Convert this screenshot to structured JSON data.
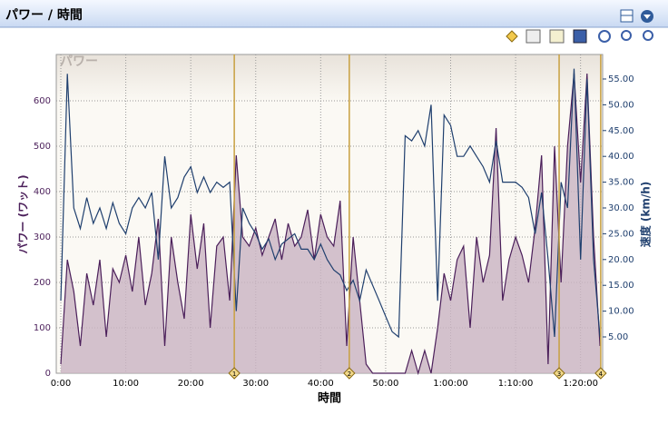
{
  "panel_title": "パワー / 時間",
  "chart_data": {
    "type": "line",
    "watermark": "パワー",
    "xlabel": "時間",
    "ylabel": "パワー (ワット)",
    "y2label": "速度 (km/h)",
    "x": [
      0,
      1,
      2,
      3,
      4,
      5,
      6,
      7,
      8,
      9,
      10,
      11,
      12,
      13,
      14,
      15,
      16,
      17,
      18,
      19,
      20,
      21,
      22,
      23,
      24,
      25,
      26,
      27,
      28,
      29,
      30,
      31,
      32,
      33,
      34,
      35,
      36,
      37,
      38,
      39,
      40,
      41,
      42,
      43,
      44,
      45,
      46,
      47,
      48,
      49,
      50,
      51,
      52,
      53,
      54,
      55,
      56,
      57,
      58,
      59,
      60,
      61,
      62,
      63,
      64,
      65,
      66,
      67,
      68,
      69,
      70,
      71,
      72,
      73,
      74,
      75,
      76,
      77,
      78,
      79,
      80,
      81,
      82,
      83
    ],
    "series": [
      {
        "name": "パワー",
        "color": "#4b1f5a",
        "fill": "#c9b3c2",
        "values": [
          20,
          250,
          180,
          60,
          220,
          150,
          250,
          80,
          230,
          200,
          260,
          180,
          300,
          150,
          220,
          340,
          60,
          300,
          200,
          120,
          350,
          230,
          330,
          100,
          280,
          300,
          160,
          480,
          300,
          280,
          320,
          260,
          300,
          340,
          250,
          330,
          280,
          300,
          360,
          250,
          350,
          300,
          280,
          380,
          60,
          300,
          160,
          20,
          0,
          0,
          0,
          0,
          0,
          0,
          50,
          0,
          50,
          0,
          100,
          220,
          160,
          250,
          280,
          100,
          300,
          200,
          260,
          540,
          160,
          250,
          300,
          260,
          200,
          320,
          480,
          20,
          500,
          200,
          500,
          660,
          420,
          660,
          300,
          60
        ]
      },
      {
        "name": "速度",
        "color": "#1f3f6e",
        "axis": "y2",
        "values": [
          12,
          56,
          30,
          26,
          32,
          27,
          30,
          26,
          31,
          27,
          25,
          30,
          32,
          30,
          33,
          20,
          40,
          30,
          32,
          36,
          38,
          33,
          36,
          33,
          35,
          34,
          35,
          10,
          30,
          27,
          25,
          22,
          24,
          20,
          23,
          24,
          25,
          22,
          22,
          20,
          23,
          20,
          18,
          17,
          14,
          16,
          12,
          18,
          15,
          12,
          9,
          6,
          5,
          44,
          43,
          45,
          42,
          50,
          12,
          48,
          46,
          40,
          40,
          42,
          40,
          38,
          35,
          43,
          35,
          35,
          35,
          34,
          32,
          25,
          33,
          20,
          5,
          35,
          30,
          57,
          20,
          55,
          20,
          5
        ]
      }
    ],
    "xlim": [
      -0.7,
      83.4
    ],
    "xticks": [
      {
        "value": 0,
        "label": "0:00"
      },
      {
        "value": 10,
        "label": "10:00"
      },
      {
        "value": 20,
        "label": "20:00"
      },
      {
        "value": 30,
        "label": "30:00"
      },
      {
        "value": 40,
        "label": "40:00"
      },
      {
        "value": 50,
        "label": "50:00"
      },
      {
        "value": 60,
        "label": "1:00:00"
      },
      {
        "value": 70,
        "label": "1:10:00"
      },
      {
        "value": 80,
        "label": "1:20:00"
      }
    ],
    "ylim": [
      0,
      702
    ],
    "yticks": [
      0,
      100,
      200,
      300,
      400,
      500,
      600
    ],
    "y2lim": [
      -2.04,
      59.75
    ],
    "y2ticks": [
      {
        "value": 5,
        "label": "5.00"
      },
      {
        "value": 10,
        "label": "10.00"
      },
      {
        "value": 15,
        "label": "15.00"
      },
      {
        "value": 20,
        "label": "20.00"
      },
      {
        "value": 25,
        "label": "25.00"
      },
      {
        "value": 30,
        "label": "30.00"
      },
      {
        "value": 35,
        "label": "35.00"
      },
      {
        "value": 40,
        "label": "40.00"
      },
      {
        "value": 45,
        "label": "45.00"
      },
      {
        "value": 50,
        "label": "50.00"
      },
      {
        "value": 55,
        "label": "55.00"
      }
    ],
    "grid": true,
    "laps": [
      {
        "x": 26.7,
        "label": 1
      },
      {
        "x": 44.4,
        "label": 2
      },
      {
        "x": 76.7,
        "label": 3
      },
      {
        "x": 83.1,
        "label": 4
      }
    ],
    "lap_color": "#c8a040"
  }
}
